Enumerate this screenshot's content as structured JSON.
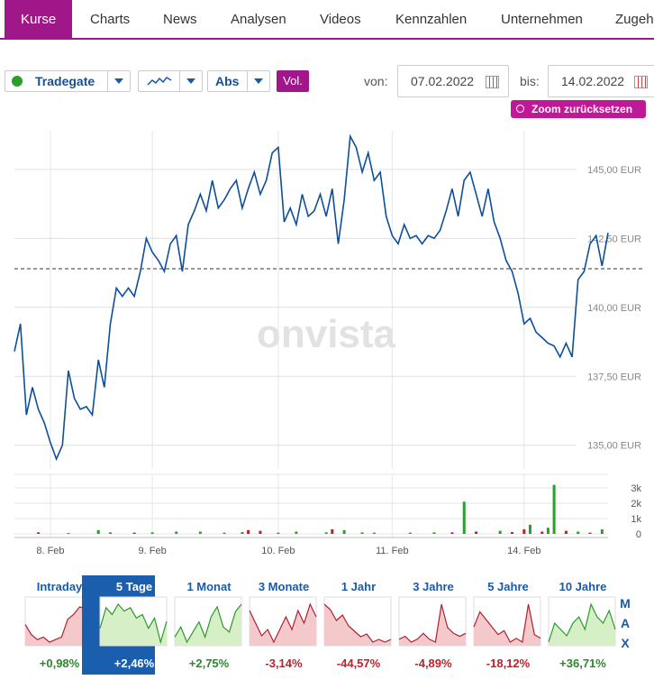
{
  "tabs": [
    "Kurse",
    "Charts",
    "News",
    "Analysen",
    "Videos",
    "Kennzahlen",
    "Unternehmen",
    "Zugeh"
  ],
  "toolbar": {
    "exchange": "Tradegate",
    "mode": "Abs",
    "volume": "Vol.",
    "from_label": "von:",
    "from": "07.02.2022",
    "to_label": "bis:",
    "to": "14.02.2022",
    "zoom_reset": "Zoom zurücksetzen"
  },
  "watermark": "onvista",
  "chart_data": [
    {
      "type": "line",
      "color": "#0d4f9a",
      "x": [
        0,
        1,
        2,
        3,
        4,
        5,
        6,
        7,
        8,
        9,
        10,
        11,
        12,
        13,
        14,
        15,
        16,
        17,
        18,
        19,
        20,
        21,
        22,
        23,
        24,
        25,
        26,
        27,
        28,
        29,
        30,
        31,
        32,
        33,
        34,
        35,
        36,
        37,
        38,
        39,
        40,
        41,
        42,
        43,
        44,
        45,
        46,
        47,
        48,
        49,
        50,
        51,
        52,
        53,
        54,
        55,
        56,
        57,
        58,
        59,
        60,
        61,
        62,
        63,
        64,
        65,
        66,
        67,
        68,
        69,
        70,
        71,
        72,
        73,
        74,
        75,
        76,
        77,
        78,
        79,
        80,
        81,
        82,
        83,
        84,
        85,
        86,
        87,
        88,
        89,
        90,
        91,
        92,
        93,
        94,
        95,
        96,
        97,
        98,
        99
      ],
      "values": [
        138.4,
        139.4,
        136.1,
        137.1,
        136.3,
        135.8,
        135.1,
        134.5,
        135.0,
        137.7,
        136.7,
        136.3,
        136.4,
        136.1,
        138.1,
        137.1,
        139.4,
        140.7,
        140.4,
        140.7,
        140.4,
        141.3,
        142.5,
        142.0,
        141.7,
        141.3,
        142.3,
        142.6,
        141.3,
        143.0,
        143.5,
        144.1,
        143.5,
        144.6,
        143.6,
        143.9,
        144.3,
        144.6,
        143.6,
        144.3,
        144.9,
        144.1,
        144.6,
        145.6,
        145.8,
        143.1,
        143.6,
        143.0,
        144.1,
        143.3,
        143.5,
        144.1,
        143.3,
        144.3,
        142.3,
        143.9,
        146.2,
        145.8,
        144.9,
        145.6,
        144.6,
        144.9,
        143.3,
        142.6,
        142.3,
        143.0,
        142.5,
        142.6,
        142.3,
        142.6,
        142.5,
        142.8,
        143.5,
        144.3,
        143.3,
        144.6,
        144.9,
        144.1,
        143.3,
        144.3,
        143.1,
        142.5,
        141.7,
        141.3,
        140.5,
        139.4,
        139.6,
        139.1,
        138.9,
        138.7,
        138.6,
        138.2,
        138.7,
        138.2,
        141.0,
        141.3,
        142.3,
        142.6,
        141.5,
        142.7
      ],
      "xlim": [
        0,
        99
      ],
      "xticks": [
        {
          "value": 6,
          "label": "8. Feb"
        },
        {
          "value": 23,
          "label": "9. Feb"
        },
        {
          "value": 44,
          "label": "10. Feb"
        },
        {
          "value": 63,
          "label": "11. Feb"
        },
        {
          "value": 85,
          "label": "14. Feb"
        }
      ],
      "ylim": [
        134.5,
        146.5
      ],
      "yticks": [
        {
          "value": 135,
          "label": "135,00 EUR"
        },
        {
          "value": 137.5,
          "label": "137,50 EUR"
        },
        {
          "value": 140,
          "label": "140,00 EUR"
        },
        {
          "value": 142.5,
          "label": "142,50 EUR"
        },
        {
          "value": 145,
          "label": "145,00 EUR"
        }
      ],
      "reference_line": 141.4,
      "grid": true
    },
    {
      "type": "bar",
      "x": [
        4,
        9,
        14,
        16,
        20,
        23,
        27,
        31,
        35,
        38,
        39,
        41,
        44,
        47,
        52,
        53,
        55,
        58,
        60,
        66,
        70,
        73,
        75,
        77,
        81,
        83,
        85,
        86,
        88,
        89,
        90,
        92,
        94,
        96,
        98
      ],
      "values": [
        100,
        60,
        250,
        100,
        80,
        100,
        150,
        150,
        80,
        120,
        250,
        200,
        80,
        150,
        100,
        300,
        250,
        100,
        80,
        80,
        100,
        100,
        2100,
        150,
        200,
        120,
        300,
        600,
        150,
        400,
        3200,
        200,
        150,
        80,
        300
      ],
      "colors": [
        "#c0202a",
        "#2aa02a",
        "#2aa02a",
        "#2aa02a",
        "#c0202a",
        "#2aa02a",
        "#2aa02a",
        "#2aa02a",
        "#2aa02a",
        "#2aa02a",
        "#c0202a",
        "#c0202a",
        "#2aa02a",
        "#2aa02a",
        "#2aa02a",
        "#c0202a",
        "#2aa02a",
        "#2aa02a",
        "#2aa02a",
        "#2aa02a",
        "#2aa02a",
        "#c0202a",
        "#2aa02a",
        "#c0202a",
        "#2aa02a",
        "#c0202a",
        "#c0202a",
        "#2aa02a",
        "#c0202a",
        "#2aa02a",
        "#2aa02a",
        "#c0202a",
        "#2aa02a",
        "#c0202a",
        "#2aa02a"
      ],
      "xlim": [
        0,
        99
      ],
      "ylim": [
        0,
        3000
      ],
      "yticks": [
        {
          "value": 0,
          "label": "0"
        },
        {
          "value": 1000,
          "label": "1k"
        },
        {
          "value": 2000,
          "label": "2k"
        },
        {
          "value": 3000,
          "label": "3k"
        }
      ]
    }
  ],
  "periods": [
    {
      "label": "Intraday",
      "change": 0.98,
      "change_label": "+0,98%",
      "line": "#b02030",
      "fill": "#f4c9cc",
      "spark": [
        5,
        3,
        2,
        2.5,
        1.5,
        2,
        2.5,
        6,
        7,
        8.5,
        8,
        9
      ]
    },
    {
      "label": "5 Tage",
      "change": 2.46,
      "change_label": "+2,46%",
      "line": "#2a9a2a",
      "fill": "#d6efc6",
      "selected": true,
      "spark": [
        5,
        8,
        7,
        8.5,
        7.5,
        8,
        6.5,
        7,
        5,
        6.5,
        3,
        6
      ]
    },
    {
      "label": "1 Monat",
      "change": 2.75,
      "change_label": "+2,75%",
      "line": "#2a9a2a",
      "fill": "#d6efc6",
      "spark": [
        3,
        5,
        2,
        4,
        6,
        3,
        7,
        9,
        5,
        4,
        8,
        9.5
      ]
    },
    {
      "label": "3 Monate",
      "change": -3.14,
      "change_label": "-3,14%",
      "line": "#b02030",
      "fill": "#f4c9cc",
      "spark": [
        8,
        6,
        4,
        5,
        3,
        5,
        7,
        5,
        8,
        6,
        9,
        7
      ]
    },
    {
      "label": "1 Jahr",
      "change": -44.57,
      "change_label": "-44,57%",
      "line": "#b02030",
      "fill": "#f4c9cc",
      "spark": [
        9,
        8,
        6,
        7,
        5,
        4,
        3,
        3.5,
        2,
        2.5,
        2,
        2.5
      ]
    },
    {
      "label": "3 Jahre",
      "change": -4.89,
      "change_label": "-4,89%",
      "line": "#b02030",
      "fill": "#f4c9cc",
      "spark": [
        3,
        3.5,
        2.5,
        3,
        4,
        3,
        2.5,
        9,
        5,
        4,
        3.5,
        4
      ]
    },
    {
      "label": "5 Jahre",
      "change": -18.12,
      "change_label": "-18,12%",
      "line": "#b02030",
      "fill": "#f4c9cc",
      "spark": [
        5,
        7,
        6,
        5,
        4,
        4.5,
        3,
        3.5,
        3,
        8,
        4,
        3.5
      ]
    },
    {
      "label": "10 Jahre",
      "change": 36.71,
      "change_label": "+36,71%",
      "line": "#2a9a2a",
      "fill": "#d6efc6",
      "spark": [
        2,
        5,
        4,
        3,
        5,
        6,
        4,
        8,
        6,
        5,
        7,
        4
      ]
    }
  ],
  "max_label": "MAX"
}
